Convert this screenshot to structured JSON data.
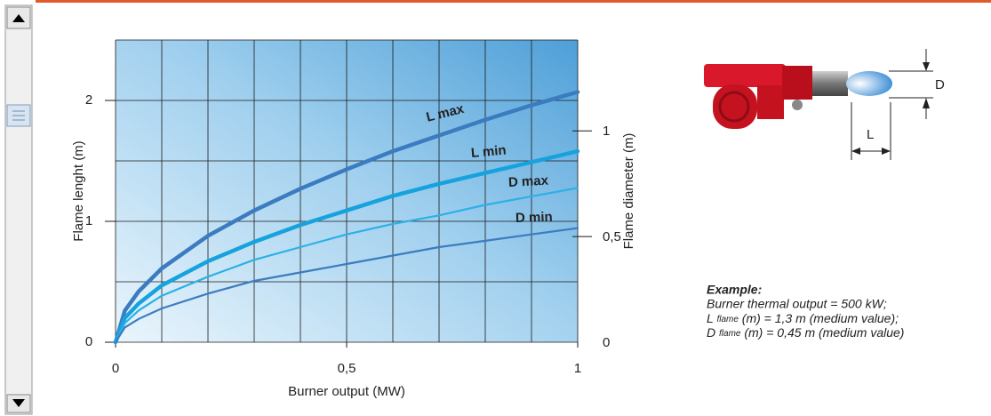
{
  "chart_data": {
    "type": "line",
    "xlabel": "Burner output (MW)",
    "ylabel": "Flame lenght (m)",
    "y2label": "Flame diameter (m)",
    "x": [
      0,
      0.02,
      0.05,
      0.1,
      0.2,
      0.3,
      0.4,
      0.5,
      0.6,
      0.7,
      0.8,
      0.9,
      1
    ],
    "xlim": [
      0,
      1
    ],
    "xticks": [
      0,
      {
        "value": 0.5,
        "label": "0,5"
      },
      1
    ],
    "xgrid": [
      0,
      0.1,
      0.2,
      0.3,
      0.4,
      0.5,
      0.6,
      0.7,
      0.8,
      0.9,
      1
    ],
    "ylim": [
      0,
      2.5
    ],
    "yticks": [
      0,
      1,
      2
    ],
    "ygrid": [
      0,
      0.5,
      1,
      1.5,
      2,
      2.5
    ],
    "y2lim": [
      0,
      1.43
    ],
    "y2ticks": [
      0,
      {
        "value": 0.5,
        "label": "0,5"
      },
      1
    ],
    "series": [
      {
        "name": "L max",
        "color": "#3b7cc0",
        "values": [
          0,
          0.26,
          0.42,
          0.61,
          0.88,
          1.09,
          1.27,
          1.43,
          1.58,
          1.71,
          1.84,
          1.96,
          2.07
        ]
      },
      {
        "name": "L min",
        "color": "#16a3dd",
        "values": [
          0,
          0.2,
          0.32,
          0.47,
          0.67,
          0.83,
          0.97,
          1.09,
          1.21,
          1.31,
          1.4,
          1.49,
          1.58
        ]
      },
      {
        "name": "D max",
        "color": "#2cb0e6",
        "axis": "y2",
        "values": [
          0,
          0.09,
          0.15,
          0.22,
          0.31,
          0.39,
          0.45,
          0.51,
          0.56,
          0.6,
          0.65,
          0.69,
          0.73
        ]
      },
      {
        "name": "D min",
        "color": "#3b7cc0",
        "axis": "y2",
        "values": [
          0,
          0.07,
          0.11,
          0.16,
          0.23,
          0.29,
          0.33,
          0.37,
          0.41,
          0.45,
          0.48,
          0.51,
          0.54
        ]
      }
    ]
  },
  "diagram": {
    "labels": [
      "D",
      "L"
    ]
  },
  "example": {
    "title": "Example:",
    "line1": "Burner thermal output = 500 kW;",
    "line2": [
      "L",
      "flame",
      "(m) = 1,3 m (medium value);"
    ],
    "line3": [
      "D",
      "flame",
      "(m) = 0,45 m (medium value)"
    ]
  }
}
